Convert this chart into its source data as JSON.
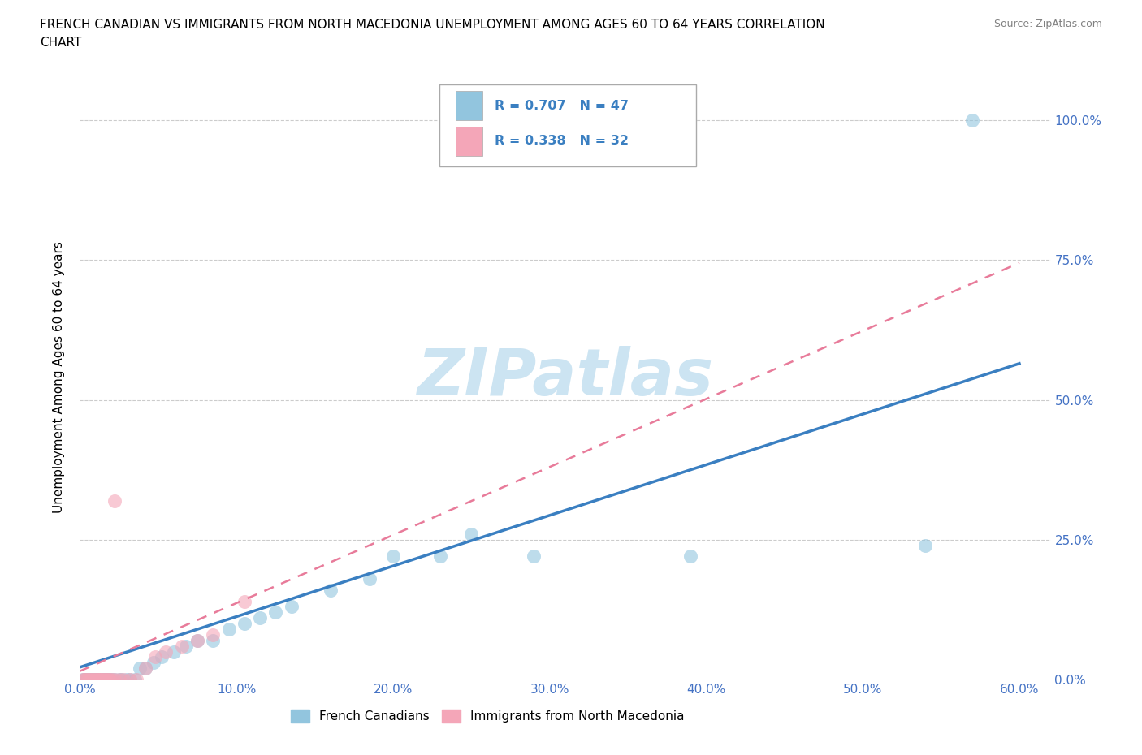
{
  "title_line1": "FRENCH CANADIAN VS IMMIGRANTS FROM NORTH MACEDONIA UNEMPLOYMENT AMONG AGES 60 TO 64 YEARS CORRELATION",
  "title_line2": "CHART",
  "source": "Source: ZipAtlas.com",
  "xlabel_ticks": [
    "0.0%",
    "10.0%",
    "20.0%",
    "30.0%",
    "40.0%",
    "50.0%",
    "60.0%"
  ],
  "ylabel_ticks": [
    "0.0%",
    "25.0%",
    "50.0%",
    "75.0%",
    "100.0%"
  ],
  "ylabel_label": "Unemployment Among Ages 60 to 64 years",
  "xlim": [
    0,
    0.62
  ],
  "ylim": [
    0,
    1.08
  ],
  "legend1_R": "0.707",
  "legend1_N": "47",
  "legend2_R": "0.338",
  "legend2_N": "32",
  "blue_color": "#92c5de",
  "pink_color": "#f4a6b8",
  "blue_line_color": "#3a7fc1",
  "pink_line_color": "#e87b9a",
  "blue_scatter": [
    [
      0.002,
      0.0
    ],
    [
      0.003,
      0.0
    ],
    [
      0.004,
      0.0
    ],
    [
      0.005,
      0.0
    ],
    [
      0.006,
      0.0
    ],
    [
      0.007,
      0.0
    ],
    [
      0.008,
      0.0
    ],
    [
      0.009,
      0.0
    ],
    [
      0.01,
      0.0
    ],
    [
      0.011,
      0.0
    ],
    [
      0.012,
      0.0
    ],
    [
      0.013,
      0.0
    ],
    [
      0.014,
      0.0
    ],
    [
      0.015,
      0.0
    ],
    [
      0.016,
      0.0
    ],
    [
      0.017,
      0.0
    ],
    [
      0.018,
      0.0
    ],
    [
      0.019,
      0.0
    ],
    [
      0.02,
      0.0
    ],
    [
      0.022,
      0.0
    ],
    [
      0.025,
      0.0
    ],
    [
      0.027,
      0.0
    ],
    [
      0.03,
      0.0
    ],
    [
      0.032,
      0.0
    ],
    [
      0.035,
      0.0
    ],
    [
      0.038,
      0.02
    ],
    [
      0.042,
      0.02
    ],
    [
      0.047,
      0.03
    ],
    [
      0.052,
      0.04
    ],
    [
      0.06,
      0.05
    ],
    [
      0.068,
      0.06
    ],
    [
      0.075,
      0.07
    ],
    [
      0.085,
      0.07
    ],
    [
      0.095,
      0.09
    ],
    [
      0.105,
      0.1
    ],
    [
      0.115,
      0.11
    ],
    [
      0.125,
      0.12
    ],
    [
      0.135,
      0.13
    ],
    [
      0.16,
      0.16
    ],
    [
      0.185,
      0.18
    ],
    [
      0.2,
      0.22
    ],
    [
      0.23,
      0.22
    ],
    [
      0.25,
      0.26
    ],
    [
      0.29,
      0.22
    ],
    [
      0.39,
      0.22
    ],
    [
      0.54,
      0.24
    ],
    [
      0.57,
      1.0
    ]
  ],
  "pink_scatter": [
    [
      0.002,
      0.0
    ],
    [
      0.003,
      0.0
    ],
    [
      0.004,
      0.0
    ],
    [
      0.005,
      0.0
    ],
    [
      0.006,
      0.0
    ],
    [
      0.007,
      0.0
    ],
    [
      0.008,
      0.0
    ],
    [
      0.009,
      0.0
    ],
    [
      0.01,
      0.0
    ],
    [
      0.011,
      0.0
    ],
    [
      0.012,
      0.0
    ],
    [
      0.013,
      0.0
    ],
    [
      0.014,
      0.0
    ],
    [
      0.015,
      0.0
    ],
    [
      0.016,
      0.0
    ],
    [
      0.017,
      0.0
    ],
    [
      0.018,
      0.0
    ],
    [
      0.019,
      0.0
    ],
    [
      0.02,
      0.0
    ],
    [
      0.022,
      0.0
    ],
    [
      0.025,
      0.0
    ],
    [
      0.028,
      0.0
    ],
    [
      0.032,
      0.0
    ],
    [
      0.036,
      0.0
    ],
    [
      0.042,
      0.02
    ],
    [
      0.048,
      0.04
    ],
    [
      0.055,
      0.05
    ],
    [
      0.065,
      0.06
    ],
    [
      0.075,
      0.07
    ],
    [
      0.085,
      0.08
    ],
    [
      0.022,
      0.32
    ],
    [
      0.105,
      0.14
    ]
  ],
  "watermark": "ZIPatlas",
  "watermark_color": "#cce4f2",
  "grid_color": "#cccccc",
  "grid_style": "--",
  "background_color": "#ffffff"
}
